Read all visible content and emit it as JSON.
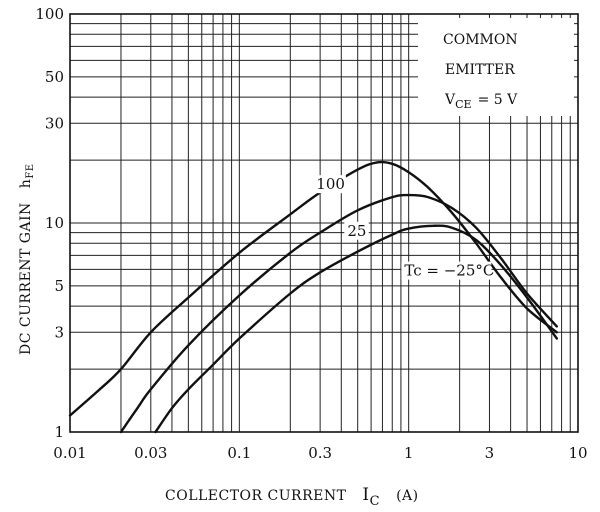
{
  "chart_data": {
    "type": "line",
    "title": "",
    "xlabel": "COLLECTOR CURRENT",
    "xlabel_symbol": "I",
    "xlabel_subscript": "C",
    "xlabel_unit": "(A)",
    "ylabel": "DC CURRENT GAIN",
    "ylabel_symbol": "h",
    "ylabel_subscript": "FE",
    "xscale": "log",
    "yscale": "log",
    "xlim": [
      0.01,
      10
    ],
    "ylim": [
      1,
      100
    ],
    "grid": true,
    "x_tick_values": [
      0.01,
      0.03,
      0.1,
      0.3,
      1,
      3,
      10
    ],
    "x_tick_labels": [
      "0.01",
      "0.03",
      "0.1",
      "0.3",
      "1",
      "3",
      "10"
    ],
    "y_tick_values": [
      1,
      3,
      5,
      10,
      30,
      50,
      100
    ],
    "y_tick_labels": [
      "1",
      "3",
      "5",
      "10",
      "30",
      "50",
      "100"
    ],
    "legend_position": "top-right",
    "annotation": {
      "line1": "COMMON",
      "line2": "EMITTER",
      "line3_symbol": "V",
      "line3_subscript": "CE",
      "line3_value": "= 5 V"
    },
    "series": [
      {
        "name": "100",
        "x": [
          0.01,
          0.015,
          0.02,
          0.03,
          0.05,
          0.1,
          0.2,
          0.3,
          0.5,
          0.65,
          0.8,
          1.0,
          1.3,
          1.8,
          2.5,
          3.5,
          5.0,
          7.5
        ],
        "y": [
          1.2,
          1.6,
          2.0,
          3.0,
          4.4,
          7.2,
          11.0,
          14.0,
          18.0,
          19.5,
          19.2,
          17.5,
          14.8,
          11.2,
          8.0,
          5.5,
          3.9,
          3.0
        ]
      },
      {
        "name": "25",
        "x": [
          0.02,
          0.025,
          0.03,
          0.05,
          0.1,
          0.2,
          0.3,
          0.5,
          0.8,
          1.0,
          1.3,
          1.8,
          2.5,
          3.5,
          5.0,
          7.5
        ],
        "y": [
          1.0,
          1.3,
          1.6,
          2.6,
          4.5,
          7.2,
          9.0,
          11.5,
          13.3,
          13.6,
          13.3,
          11.8,
          9.5,
          6.8,
          4.6,
          3.2
        ]
      },
      {
        "name": "Tc = −25°C",
        "x": [
          0.032,
          0.04,
          0.05,
          0.07,
          0.1,
          0.2,
          0.3,
          0.5,
          0.8,
          1.0,
          1.4,
          1.8,
          2.5,
          3.5,
          5.0,
          7.5
        ],
        "y": [
          1.0,
          1.3,
          1.6,
          2.1,
          2.8,
          4.6,
          5.8,
          7.3,
          8.8,
          9.4,
          9.7,
          9.5,
          8.3,
          6.3,
          4.4,
          2.8
        ]
      }
    ],
    "colors": {
      "ink": "#111111",
      "background": "#ffffff"
    }
  }
}
